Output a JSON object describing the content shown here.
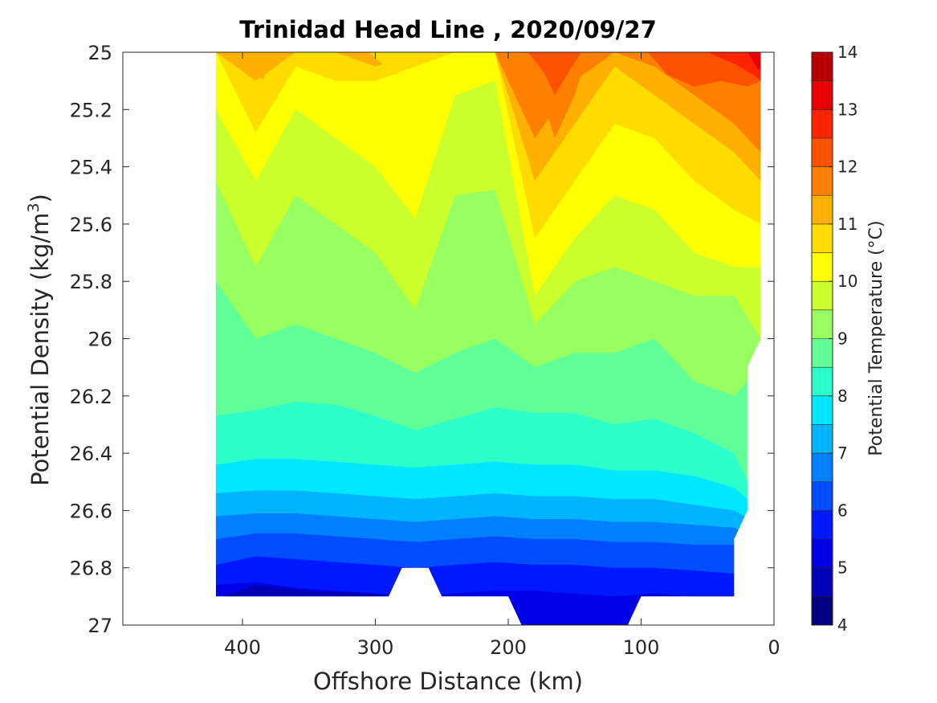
{
  "chart_data": {
    "type": "heatmap",
    "subtype": "filled contour",
    "title": "Trinidad Head Line , 2020/09/27",
    "xlabel": "Offshore Distance (km)",
    "ylabel": "Potential Density (kg/m",
    "ylabel_superscript": "3",
    "ylabel_close": ")",
    "colorbar_label": "Potential Temperature (°C)",
    "x_reversed": true,
    "xlim": [
      490,
      0
    ],
    "ylim_reversed": true,
    "ylim": [
      25,
      27
    ],
    "x_ticks": [
      400,
      300,
      200,
      100,
      0
    ],
    "x_tick_labels": [
      "400",
      "300",
      "200",
      "100",
      "0"
    ],
    "y_ticks": [
      25,
      25.2,
      25.4,
      25.6,
      25.8,
      26,
      26.2,
      26.4,
      26.6,
      26.8,
      27
    ],
    "y_tick_labels": [
      "25",
      "25.2",
      "25.4",
      "25.6",
      "25.8",
      "26",
      "26.2",
      "26.4",
      "26.6",
      "26.8",
      "27"
    ],
    "colorbar_ticks": [
      4,
      5,
      6,
      7,
      8,
      9,
      10,
      11,
      12,
      13,
      14
    ],
    "colorbar_tick_labels": [
      "4",
      "5",
      "6",
      "7",
      "8",
      "9",
      "10",
      "11",
      "12",
      "13",
      "14"
    ],
    "colormap": "jet",
    "levels": [
      4,
      4.5,
      5,
      5.5,
      6,
      6.5,
      7,
      7.5,
      8,
      8.5,
      9,
      9.5,
      10,
      10.5,
      11,
      11.5,
      12,
      12.5,
      13,
      13.5,
      14
    ],
    "level_colors": [
      "#000080",
      "#0000b4",
      "#0000e8",
      "#0018ff",
      "#004cff",
      "#0080ff",
      "#00b4ff",
      "#00e8ff",
      "#2cffca",
      "#60ff97",
      "#97ff60",
      "#caff2c",
      "#ffff00",
      "#ffdc00",
      "#ffb000",
      "#ff8000",
      "#ff5200",
      "#ff2400",
      "#e80000",
      "#b40000"
    ],
    "data_x_range": [
      420,
      10
    ],
    "stations_x": [
      420,
      390,
      360,
      330,
      300,
      270,
      240,
      210,
      180,
      150,
      120,
      90,
      60,
      30,
      10
    ],
    "contour_isotherm_depths": {
      "x": [
        420,
        390,
        360,
        330,
        300,
        270,
        240,
        210,
        180,
        150,
        120,
        90,
        60,
        30,
        10
      ],
      "isotherms": [
        {
          "temp": 11.5,
          "density": [
            25.0,
            25.0,
            25.0,
            25.0,
            25.0,
            25.0,
            25.0,
            25.0,
            25.3,
            25.1,
            25.0,
            25.05,
            25.15,
            25.25,
            25.35
          ]
        },
        {
          "temp": 11.0,
          "density": [
            25.0,
            25.1,
            25.0,
            25.0,
            25.05,
            25.0,
            25.0,
            25.0,
            25.45,
            25.25,
            25.05,
            25.15,
            25.25,
            25.35,
            25.45
          ]
        },
        {
          "temp": 10.5,
          "density": [
            25.0,
            25.28,
            25.05,
            25.1,
            25.1,
            25.05,
            25.0,
            25.0,
            25.65,
            25.45,
            25.25,
            25.3,
            25.45,
            25.55,
            25.6
          ]
        },
        {
          "temp": 10.0,
          "density": [
            25.2,
            25.45,
            25.2,
            25.3,
            25.4,
            25.58,
            25.15,
            25.1,
            25.85,
            25.65,
            25.5,
            25.55,
            25.7,
            25.75,
            25.75
          ]
        },
        {
          "temp": 9.5,
          "density": [
            25.45,
            25.75,
            25.5,
            25.6,
            25.7,
            25.9,
            25.5,
            25.48,
            25.95,
            25.8,
            25.75,
            25.8,
            25.85,
            25.85,
            26.0
          ]
        },
        {
          "temp": 9.0,
          "density": [
            25.8,
            26.0,
            25.95,
            26.0,
            26.05,
            26.12,
            26.05,
            26.0,
            26.1,
            26.05,
            26.05,
            26.0,
            26.15,
            26.2,
            26.1
          ]
        },
        {
          "temp": 8.5,
          "density": [
            26.27,
            26.25,
            26.22,
            26.23,
            26.27,
            26.32,
            26.28,
            26.24,
            26.26,
            26.26,
            26.3,
            26.28,
            26.33,
            26.4,
            26.6
          ]
        },
        {
          "temp": 8.0,
          "density": [
            26.44,
            26.42,
            26.42,
            26.43,
            26.44,
            26.45,
            26.44,
            26.43,
            26.44,
            26.44,
            26.46,
            26.46,
            26.48,
            26.52,
            26.6
          ]
        },
        {
          "temp": 7.5,
          "density": [
            26.54,
            26.53,
            26.53,
            26.54,
            26.55,
            26.56,
            26.55,
            26.54,
            26.55,
            26.55,
            26.56,
            26.56,
            26.58,
            26.6,
            26.65
          ]
        },
        {
          "temp": 7.0,
          "density": [
            26.62,
            26.61,
            26.61,
            26.62,
            26.63,
            26.64,
            26.63,
            26.62,
            26.63,
            26.63,
            26.64,
            26.64,
            26.65,
            26.66,
            26.7
          ]
        },
        {
          "temp": 6.5,
          "density": [
            26.7,
            26.68,
            26.68,
            26.69,
            26.7,
            26.71,
            26.7,
            26.69,
            26.7,
            26.7,
            26.71,
            26.71,
            26.72,
            26.72,
            26.72
          ]
        },
        {
          "temp": 6.0,
          "density": [
            26.79,
            26.76,
            26.77,
            26.78,
            26.79,
            26.8,
            26.79,
            26.78,
            26.79,
            26.79,
            26.8,
            26.8,
            26.81,
            26.82,
            26.82
          ]
        },
        {
          "temp": 5.5,
          "density": [
            26.86,
            26.85,
            26.87,
            26.88,
            26.89,
            26.9,
            26.89,
            26.88,
            26.88,
            26.89,
            26.9,
            26.89,
            26.9,
            26.9,
            26.9
          ]
        }
      ]
    },
    "data_bottom_boundary": {
      "x": [
        420,
        290,
        280,
        260,
        250,
        200,
        190,
        150,
        110,
        100,
        30
      ],
      "density": [
        26.9,
        26.9,
        26.8,
        26.8,
        26.9,
        26.9,
        27.0,
        27.0,
        27.0,
        26.9,
        26.9
      ]
    },
    "data_right_boundary": {
      "x": [
        10,
        10,
        20,
        20,
        30,
        30
      ],
      "density": [
        25.0,
        26.0,
        26.1,
        26.6,
        26.7,
        26.9
      ]
    },
    "grid": false,
    "legend": "colorbar right"
  }
}
